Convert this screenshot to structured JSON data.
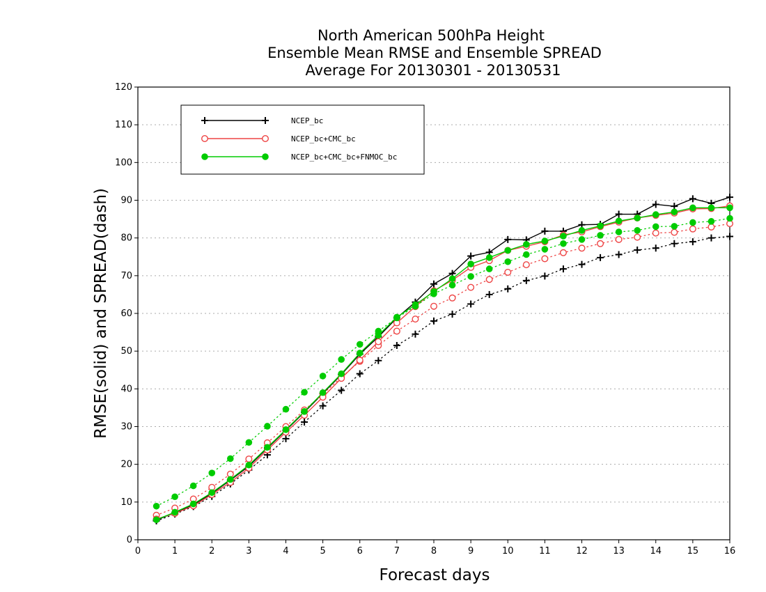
{
  "chart_data": {
    "type": "line",
    "title": [
      "North American 500hPa Height",
      "Ensemble Mean RMSE and Ensemble SPREAD",
      "Average For 20130301 - 20130531"
    ],
    "xlabel": "Forecast days",
    "ylabel": "RMSE(solid) and SPREAD(dash)",
    "xlim": [
      0,
      16
    ],
    "ylim": [
      0,
      120
    ],
    "xticks": [
      0,
      1,
      2,
      3,
      4,
      5,
      6,
      7,
      8,
      9,
      10,
      11,
      12,
      13,
      14,
      15,
      16
    ],
    "yticks": [
      0,
      10,
      20,
      30,
      40,
      50,
      60,
      70,
      80,
      90,
      100,
      110,
      120
    ],
    "grid": "horizontal dotted",
    "legend_position": "top-left",
    "x": [
      0.5,
      1,
      1.5,
      2,
      2.5,
      3,
      3.5,
      4,
      4.5,
      5,
      5.5,
      6,
      6.5,
      7,
      7.5,
      8,
      8.5,
      9,
      9.5,
      10,
      10.5,
      11,
      11.5,
      12,
      12.5,
      13,
      13.5,
      14,
      14.5,
      15,
      15.5,
      16
    ],
    "series": [
      {
        "name": "NCEP_bc",
        "color": "#000000",
        "marker": "plus",
        "rmse": [
          5.2,
          7.2,
          9.3,
          12.3,
          15.8,
          19.5,
          24.3,
          29.0,
          33.8,
          38.8,
          43.8,
          49.2,
          53.8,
          58.8,
          63.0,
          67.8,
          70.6,
          75.2,
          76.2,
          79.6,
          79.5,
          81.8,
          81.8,
          83.5,
          83.6,
          86.3,
          86.3,
          88.9,
          88.4,
          90.4,
          89.2,
          90.8
        ],
        "spread": [
          5.0,
          6.8,
          8.8,
          11.5,
          14.8,
          18.5,
          22.5,
          26.8,
          31.2,
          35.5,
          39.6,
          44.0,
          47.5,
          51.5,
          54.5,
          58.0,
          59.8,
          62.5,
          65.0,
          66.5,
          68.7,
          69.9,
          71.8,
          73.0,
          74.8,
          75.6,
          76.8,
          77.3,
          78.5,
          79.0,
          80.0,
          80.4
        ]
      },
      {
        "name": "NCEP_bc+CMC_bc",
        "color": "#ee4444",
        "marker": "open-circle",
        "rmse": [
          5.5,
          7.0,
          9.0,
          12.0,
          15.2,
          19.0,
          23.8,
          28.5,
          33.0,
          37.8,
          42.8,
          47.6,
          52.5,
          57.5,
          61.8,
          66.0,
          68.8,
          72.2,
          74.0,
          76.7,
          77.8,
          79.0,
          80.8,
          81.6,
          83.0,
          84.2,
          85.3,
          86.0,
          86.6,
          87.7,
          87.8,
          88.5
        ],
        "spread": [
          6.5,
          8.4,
          10.8,
          13.9,
          17.4,
          21.4,
          25.7,
          30.0,
          34.4,
          38.6,
          43.1,
          47.3,
          51.5,
          55.3,
          58.5,
          61.9,
          64.1,
          66.9,
          69.0,
          70.9,
          72.9,
          74.5,
          76.1,
          77.3,
          78.5,
          79.6,
          80.2,
          81.3,
          81.5,
          82.4,
          82.9,
          83.8
        ]
      },
      {
        "name": "NCEP_bc+CMC_bc+FNMOC_bc",
        "color": "#00cc00",
        "marker": "filled-circle",
        "rmse": [
          5.3,
          7.3,
          9.5,
          12.5,
          16.0,
          19.8,
          24.5,
          29.2,
          34.0,
          39.0,
          44.0,
          49.5,
          54.2,
          59.0,
          62.3,
          65.8,
          69.2,
          73.1,
          74.8,
          76.7,
          78.3,
          79.2,
          80.5,
          82.0,
          83.2,
          84.5,
          85.3,
          86.2,
          86.9,
          88.0,
          88.0,
          88.0
        ],
        "spread": [
          8.9,
          11.4,
          14.3,
          17.7,
          21.5,
          25.8,
          30.1,
          34.6,
          39.1,
          43.4,
          47.8,
          51.8,
          55.3,
          58.8,
          61.9,
          65.2,
          67.5,
          69.8,
          71.8,
          73.7,
          75.6,
          77.0,
          78.5,
          79.6,
          80.7,
          81.6,
          82.0,
          83.0,
          83.1,
          84.1,
          84.4,
          85.2
        ]
      }
    ]
  }
}
